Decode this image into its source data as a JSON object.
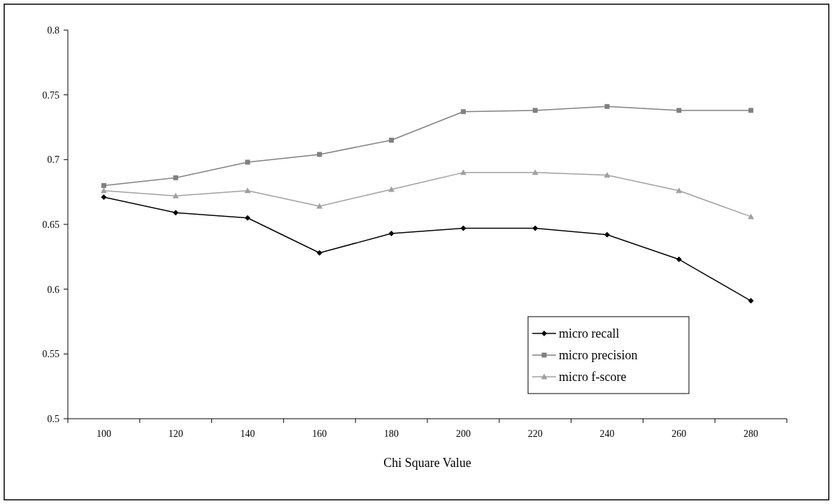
{
  "chart_data": {
    "type": "line",
    "xlabel": "Chi Square Value",
    "categories": [
      "100",
      "120",
      "140",
      "160",
      "180",
      "200",
      "220",
      "240",
      "260",
      "280"
    ],
    "ylim": [
      0.5,
      0.8
    ],
    "yticks": [
      0.5,
      0.55,
      0.6,
      0.65,
      0.7,
      0.75,
      0.8
    ],
    "grid": false,
    "legend": "bottom right",
    "series": [
      {
        "name": "micro recall",
        "color": "#000000",
        "marker": "diamond",
        "values": [
          0.671,
          0.659,
          0.655,
          0.628,
          0.643,
          0.647,
          0.647,
          0.642,
          0.623,
          0.591
        ]
      },
      {
        "name": "micro precision",
        "color": "#808080",
        "marker": "square",
        "values": [
          0.68,
          0.686,
          0.698,
          0.704,
          0.715,
          0.737,
          0.738,
          0.741,
          0.738,
          0.738
        ]
      },
      {
        "name": "micro f-score",
        "color": "#a0a0a0",
        "marker": "triangle",
        "values": [
          0.676,
          0.672,
          0.676,
          0.664,
          0.677,
          0.69,
          0.69,
          0.688,
          0.676,
          0.656
        ]
      }
    ]
  }
}
